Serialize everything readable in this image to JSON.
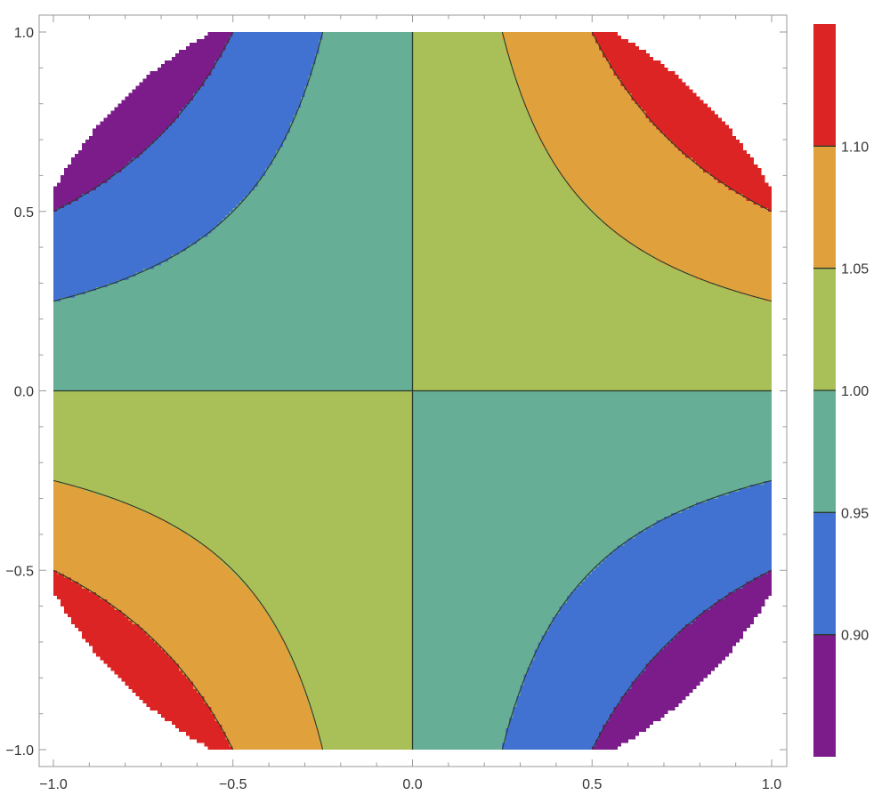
{
  "chart_data": {
    "type": "contour",
    "function": "1 + 0.2*x*y",
    "xlim": [
      -1.0,
      1.0
    ],
    "ylim": [
      -1.0,
      1.0
    ],
    "x_ticks": [
      -1.0,
      -0.5,
      0.0,
      0.5,
      1.0
    ],
    "y_ticks": [
      -1.0,
      -0.5,
      0.0,
      0.5,
      1.0
    ],
    "x_tick_labels": [
      "-1.0",
      "-0.5",
      "0.0",
      "0.5",
      "1.0"
    ],
    "y_tick_labels": [
      "-1.0",
      "-0.5",
      "0.0",
      "0.5",
      "1.0"
    ],
    "x_minor_step": 0.1,
    "y_minor_step": 0.1,
    "region": "x^2 + y^2 <= 1.31",
    "contour_levels": [
      0.9,
      0.95,
      1.0,
      1.05,
      1.1
    ],
    "bands": [
      {
        "range": [
          0.85,
          0.9
        ],
        "color": "#7b1c8a"
      },
      {
        "range": [
          0.9,
          0.95
        ],
        "color": "#4272d1"
      },
      {
        "range": [
          0.95,
          1.0
        ],
        "color": "#66ae96"
      },
      {
        "range": [
          1.0,
          1.05
        ],
        "color": "#a9bf58"
      },
      {
        "range": [
          1.05,
          1.1
        ],
        "color": "#e0a13c"
      },
      {
        "range": [
          1.1,
          1.15
        ],
        "color": "#dd2424"
      }
    ],
    "colorbar": {
      "range": [
        0.85,
        1.15
      ],
      "tick_values": [
        0.9,
        0.95,
        1.0,
        1.05,
        1.1
      ],
      "tick_labels": [
        "0.90",
        "0.95",
        "1.00",
        "1.05",
        "1.10"
      ],
      "placement": "right"
    },
    "contour_line_color": "#2b3a2b",
    "frame_color": "#9a9a9a",
    "tick_label_color": "#333333"
  }
}
